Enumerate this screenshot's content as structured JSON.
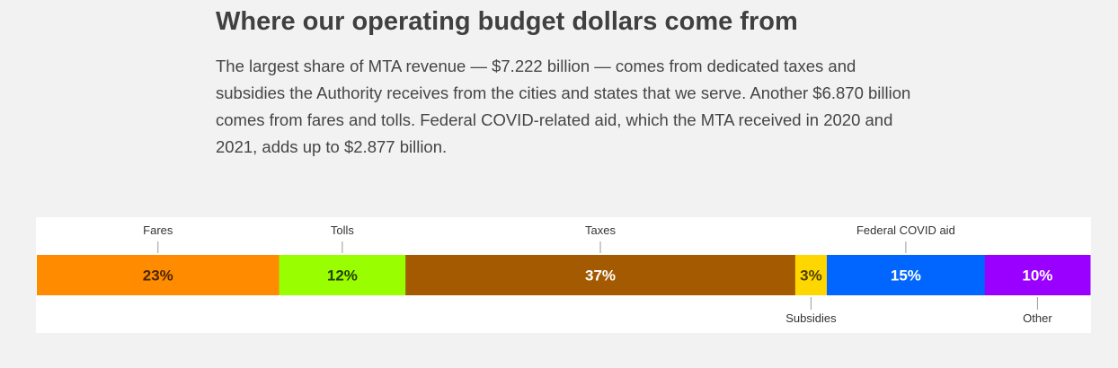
{
  "header": {
    "title": "Where our operating budget dollars come from",
    "description": "The largest share of MTA revenue — $7.222 billion — comes from dedicated taxes and subsidies the Authority receives from the cities and states that we serve. Another $6.870 billion comes from fares and tolls. Federal COVID-related aid, which the MTA received in 2020 and 2021, adds up to $2.877 billion."
  },
  "chart_data": {
    "type": "bar",
    "orientation": "horizontal-stacked",
    "unit": "%",
    "grid": false,
    "legend": "none",
    "segments": [
      {
        "name": "Fares",
        "value": 23,
        "label": "23%",
        "color": "#ff8c00",
        "label_color": "#4d2600",
        "callout": "top"
      },
      {
        "name": "Tolls",
        "value": 12,
        "label": "12%",
        "color": "#99ff00",
        "label_color": "#264000",
        "callout": "top"
      },
      {
        "name": "Taxes",
        "value": 37,
        "label": "37%",
        "color": "#a35a00",
        "label_color": "#ffffff",
        "callout": "top"
      },
      {
        "name": "Subsidies",
        "value": 3,
        "label": "3%",
        "color": "#ffd700",
        "label_color": "#4d4000",
        "callout": "bottom"
      },
      {
        "name": "Federal COVID aid",
        "value": 15,
        "label": "15%",
        "color": "#0066ff",
        "label_color": "#ffffff",
        "callout": "top"
      },
      {
        "name": "Other",
        "value": 10,
        "label": "10%",
        "color": "#9900ff",
        "label_color": "#ffffff",
        "callout": "bottom"
      }
    ]
  }
}
